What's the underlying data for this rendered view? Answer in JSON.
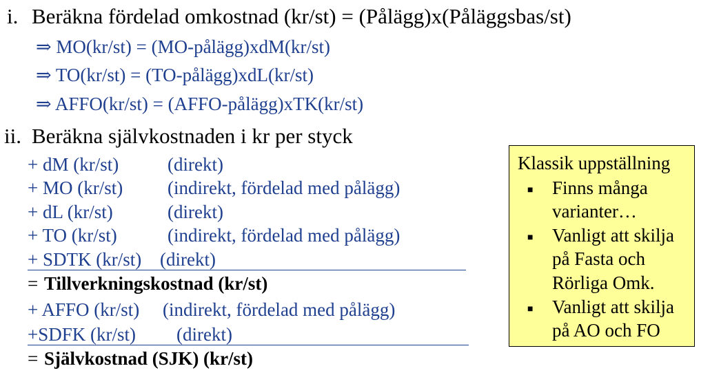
{
  "section_i": {
    "label": "i.",
    "text": "Beräkna fördelad omkostnad (kr/st) = (Pålägg)x(Påläggsbas/st)",
    "formulas": [
      "⇒ MO(kr/st) = (MO-pålägg)xdM(kr/st)",
      "⇒ TO(kr/st) = (TO-pålägg)xdL(kr/st)",
      "⇒ AFFO(kr/st) = (AFFO-pålägg)xTK(kr/st)"
    ]
  },
  "section_ii": {
    "label": "ii.",
    "text": "Beräkna självkostnaden i kr per styck",
    "rows": [
      {
        "item": "+ dM (kr/st)",
        "note": "(direkt)"
      },
      {
        "item": "+ MO (kr/st)",
        "note": "(indirekt, fördelad med pålägg)"
      },
      {
        "item": "+ dL (kr/st)",
        "note": "(direkt)"
      },
      {
        "item": "+ TO (kr/st)",
        "note": "(indirekt, fördelad med pålägg)"
      },
      {
        "item": "+ SDTK (kr/st)",
        "note": "(direkt)"
      },
      {
        "item": "= ",
        "bold": "Tillverkningskostnad (kr/st)"
      },
      {
        "item": "+ AFFO (kr/st)",
        "note": "(indirekt, fördelad med pålägg)"
      },
      {
        "item": "+SDFK (kr/st)",
        "note": "(direkt)"
      },
      {
        "item": "= ",
        "bold": "Självkostnad (SJK) (kr/st)"
      }
    ]
  },
  "note_box": {
    "title": "Klassik uppställning",
    "bullet_symbol": "■",
    "bullets": [
      [
        "Finns många",
        "varianter…"
      ],
      [
        "Vanligt att skilja",
        "på Fasta och",
        "Rörliga Omk."
      ],
      [
        "Vanligt att skilja",
        "på AO och FO"
      ]
    ]
  },
  "colors": {
    "primary_text": "#000000",
    "formula_text": "#1f3f8f",
    "note_background": "#ffff99"
  }
}
